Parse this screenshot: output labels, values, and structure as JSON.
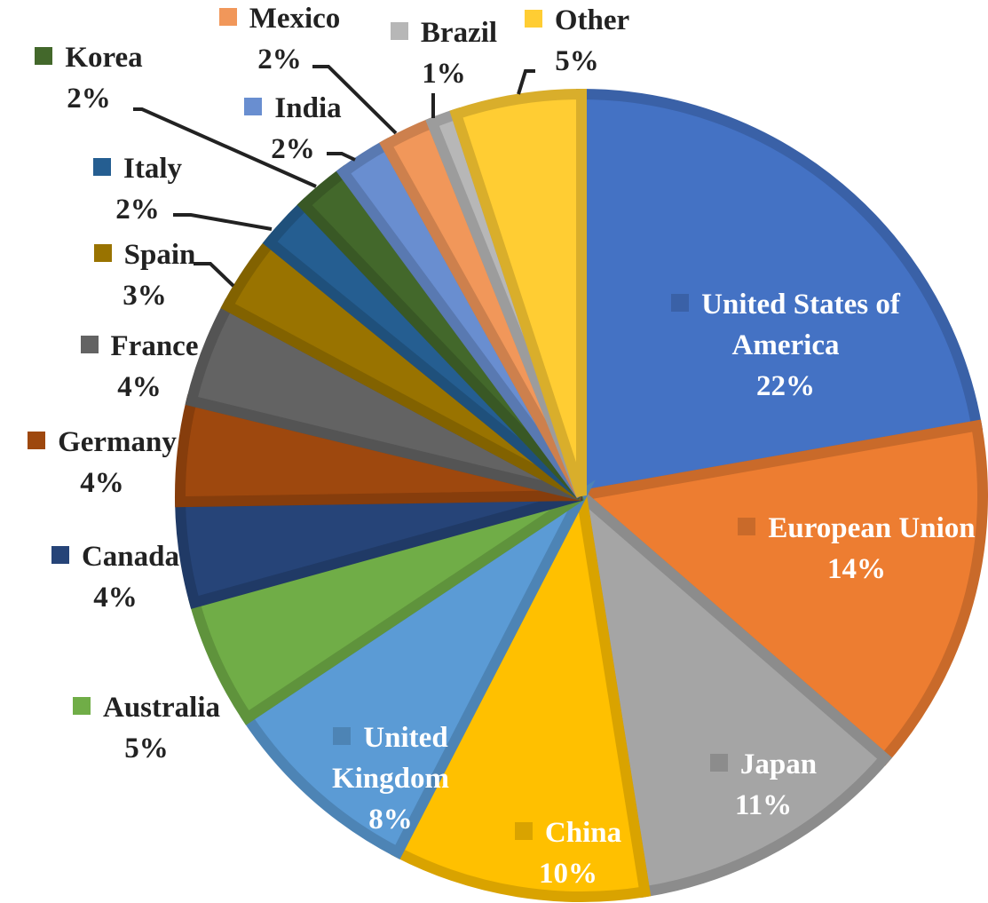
{
  "chart_data": {
    "type": "pie",
    "categories": [
      "United States of America",
      "European Union",
      "Japan",
      "China",
      "United Kingdom",
      "Australia",
      "Canada",
      "Germany",
      "France",
      "Spain",
      "Italy",
      "Korea",
      "India",
      "Mexico",
      "Brazil",
      "Other"
    ],
    "values": [
      22,
      14,
      11,
      10,
      8,
      5,
      4,
      4,
      4,
      3,
      2,
      2,
      2,
      2,
      1,
      5
    ],
    "value_labels": [
      "22%",
      "14%",
      "11%",
      "10%",
      "8%",
      "5%",
      "4%",
      "4%",
      "4%",
      "3%",
      "2%",
      "2%",
      "2%",
      "2%",
      "1%",
      "5%"
    ],
    "colors": [
      "#4472c4",
      "#ed7d31",
      "#a5a5a5",
      "#ffc000",
      "#5b9bd5",
      "#70ad47",
      "#264478",
      "#9e480e",
      "#636363",
      "#997300",
      "#255e91",
      "#43682b",
      "#698ed0",
      "#f1975a",
      "#b7b7b7",
      "#ffcd33"
    ]
  }
}
